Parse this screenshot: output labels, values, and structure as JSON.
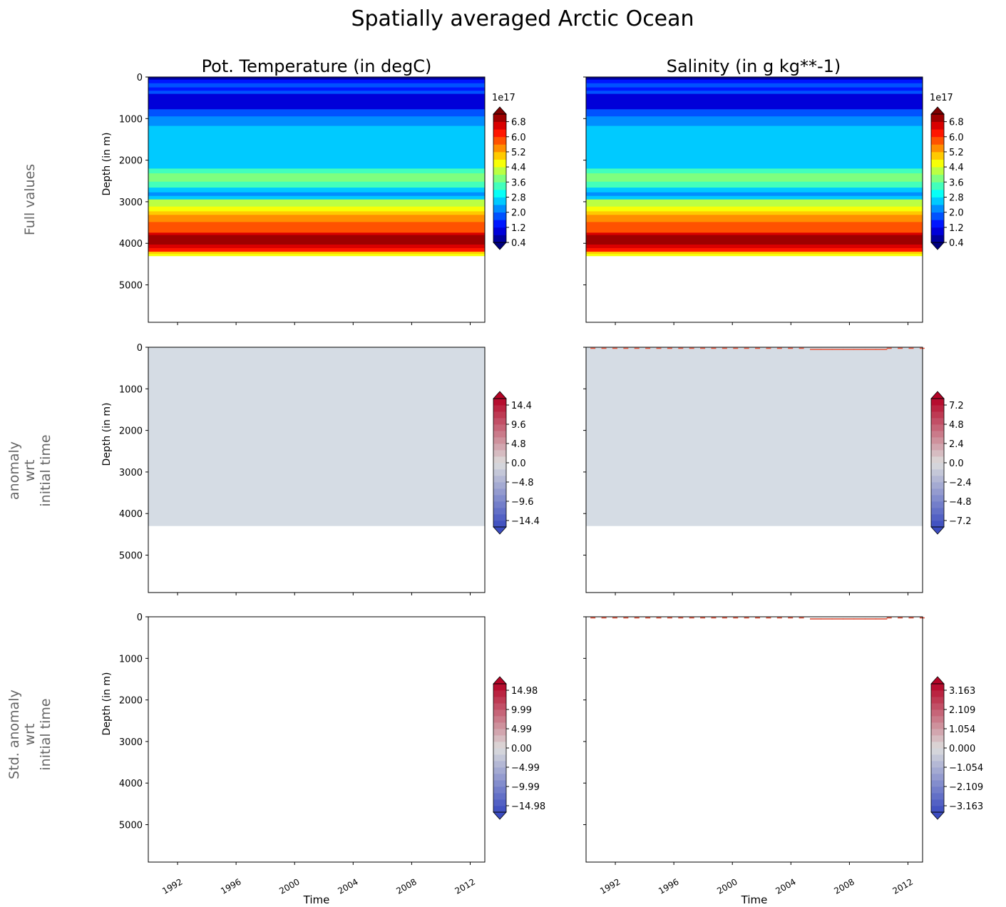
{
  "chart_data": {
    "title": "Spatially averaged Arctic Ocean",
    "columns": [
      "Pot. Temperature (in degC)",
      "Salinity (in g kg**-1)"
    ],
    "row_labels": [
      [
        "Full values"
      ],
      [
        "anomaly",
        "wrt",
        "initial time"
      ],
      [
        "Std. anomaly",
        "wrt",
        "initial time"
      ]
    ],
    "xlabel": "Time",
    "ylabel": "Depth (in m)",
    "xlim": [
      1990,
      2013
    ],
    "ylim": [
      5900,
      0
    ],
    "xticks": [
      "1992",
      "1996",
      "2000",
      "2004",
      "2008",
      "2012"
    ],
    "yticks": [
      "0",
      "1000",
      "2000",
      "3000",
      "4000",
      "5000"
    ],
    "data_max_depth": 4300,
    "panels": [
      {
        "type": "contourf",
        "row": 0,
        "col": 0,
        "colormap": "jet",
        "vmin": 0.4,
        "vmax": 7.2,
        "levels_step": 0.4,
        "offset_label": "1e17",
        "cbar_ticks": [
          "0.4",
          "1.2",
          "2.0",
          "2.8",
          "3.6",
          "4.4",
          "5.2",
          "6.0",
          "6.8"
        ],
        "profile": [
          [
            0,
            0.6
          ],
          [
            63,
            1.4
          ],
          [
            150,
            1.8
          ],
          [
            250,
            1.4
          ],
          [
            330,
            1.8
          ],
          [
            405,
            1.2
          ],
          [
            776,
            1.6
          ],
          [
            947,
            2.0
          ],
          [
            1176,
            2.8
          ],
          [
            1347,
            2.4
          ],
          [
            1575,
            2.8
          ],
          [
            1775,
            2.4
          ],
          [
            1861,
            2.8
          ],
          [
            2089,
            2.4
          ],
          [
            2203,
            3.2
          ],
          [
            2317,
            3.6
          ],
          [
            2517,
            3.2
          ],
          [
            2660,
            2.8
          ],
          [
            2774,
            2.0
          ],
          [
            2860,
            2.8
          ],
          [
            2945,
            4.0
          ],
          [
            3116,
            4.8
          ],
          [
            3231,
            5.2
          ],
          [
            3316,
            5.6
          ],
          [
            3488,
            6.0
          ],
          [
            3744,
            6.4
          ],
          [
            3801,
            7.0
          ],
          [
            4030,
            6.6
          ],
          [
            4115,
            6.2
          ],
          [
            4201,
            5.2
          ],
          [
            4250,
            4.6
          ],
          [
            4300,
            null
          ]
        ]
      },
      {
        "type": "contourf",
        "row": 0,
        "col": 1,
        "colormap": "jet",
        "vmin": 0.4,
        "vmax": 7.2,
        "levels_step": 0.4,
        "offset_label": "1e17",
        "cbar_ticks": [
          "0.4",
          "1.2",
          "2.0",
          "2.8",
          "3.6",
          "4.4",
          "5.2",
          "6.0",
          "6.8"
        ],
        "profile": "same_as_temperature"
      },
      {
        "type": "contourf",
        "row": 1,
        "col": 0,
        "colormap": "coolwarm",
        "vmin": -16,
        "vmax": 16,
        "fill": "#d5dce4",
        "cbar_ticks": [
          "14.4",
          "9.6",
          "4.8",
          "0.0",
          "−4.8",
          "−9.6",
          "−14.4"
        ]
      },
      {
        "type": "contourf",
        "row": 1,
        "col": 1,
        "colormap": "coolwarm",
        "vmin": -8,
        "vmax": 8,
        "fill": "#d5dce4",
        "surface_marks": "#e8553a",
        "cbar_ticks": [
          "7.2",
          "4.8",
          "2.4",
          "0.0",
          "−2.4",
          "−4.8",
          "−7.2"
        ]
      },
      {
        "type": "contourf",
        "row": 2,
        "col": 0,
        "colormap": "coolwarm",
        "vmin": -16.65,
        "vmax": 16.65,
        "fill": "#ffffff",
        "cbar_ticks": [
          "14.98",
          "9.99",
          "4.99",
          "0.00",
          "−4.99",
          "−9.99",
          "−14.98"
        ]
      },
      {
        "type": "contourf",
        "row": 2,
        "col": 1,
        "colormap": "coolwarm",
        "vmin": -3.515,
        "vmax": 3.515,
        "fill": "#ffffff",
        "surface_marks": "#d9442b",
        "cbar_ticks": [
          "3.163",
          "2.109",
          "1.054",
          "0.000",
          "−1.054",
          "−2.109",
          "−3.163"
        ]
      }
    ]
  }
}
